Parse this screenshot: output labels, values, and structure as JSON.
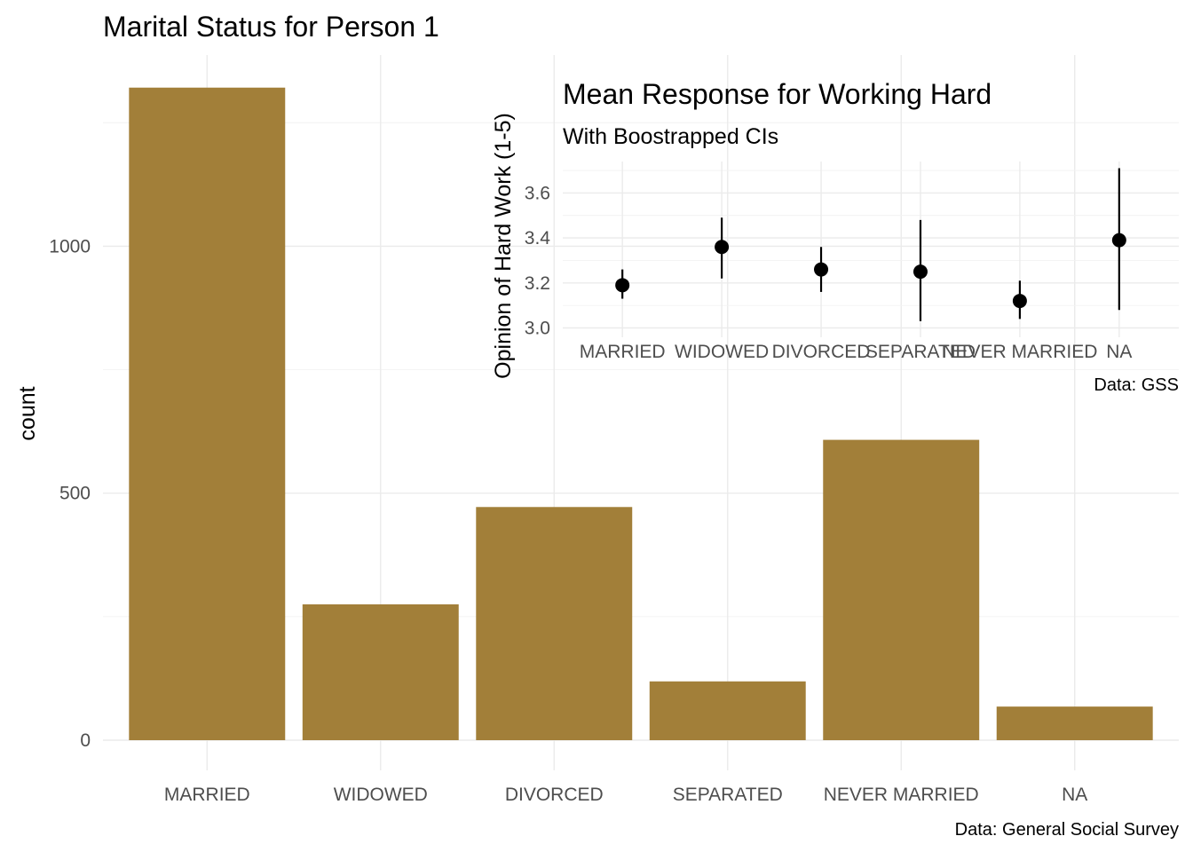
{
  "chart_data": [
    {
      "type": "bar",
      "title": "Marital Status for Person 1",
      "xlabel": "",
      "ylabel": "count",
      "caption": "Data: General Social Survey",
      "categories": [
        "MARRIED",
        "WIDOWED",
        "DIVORCED",
        "SEPARATED",
        "NEVER MARRIED",
        "NA"
      ],
      "values": [
        1321,
        275,
        472,
        119,
        608,
        68
      ],
      "ylim": [
        0,
        1350
      ],
      "yticks": [
        0,
        500,
        1000
      ],
      "ytick_labels": [
        "0",
        "500",
        "1000"
      ],
      "bar_color": "#a27f39",
      "grid": true
    },
    {
      "type": "scatter",
      "title": "Mean Response for Working Hard",
      "subtitle": "With Boostrapped CIs",
      "xlabel": "",
      "ylabel": "Opinion of Hard Work (1-5)",
      "caption": "Data: GSS",
      "categories": [
        "MARRIED",
        "WIDOWED",
        "DIVORCED",
        "SEPARATED",
        "NEVER MARRIED",
        "NA"
      ],
      "means": [
        3.19,
        3.36,
        3.26,
        3.25,
        3.12,
        3.39
      ],
      "ci_low": [
        3.13,
        3.22,
        3.16,
        3.03,
        3.04,
        3.08
      ],
      "ci_high": [
        3.26,
        3.49,
        3.36,
        3.48,
        3.21,
        3.71
      ],
      "ylim": [
        2.995,
        3.74
      ],
      "yticks": [
        3.0,
        3.2,
        3.4,
        3.6
      ],
      "ytick_labels": [
        "3.0",
        "3.2",
        "3.4",
        "3.6"
      ],
      "point_color": "#000000",
      "grid": true
    }
  ]
}
